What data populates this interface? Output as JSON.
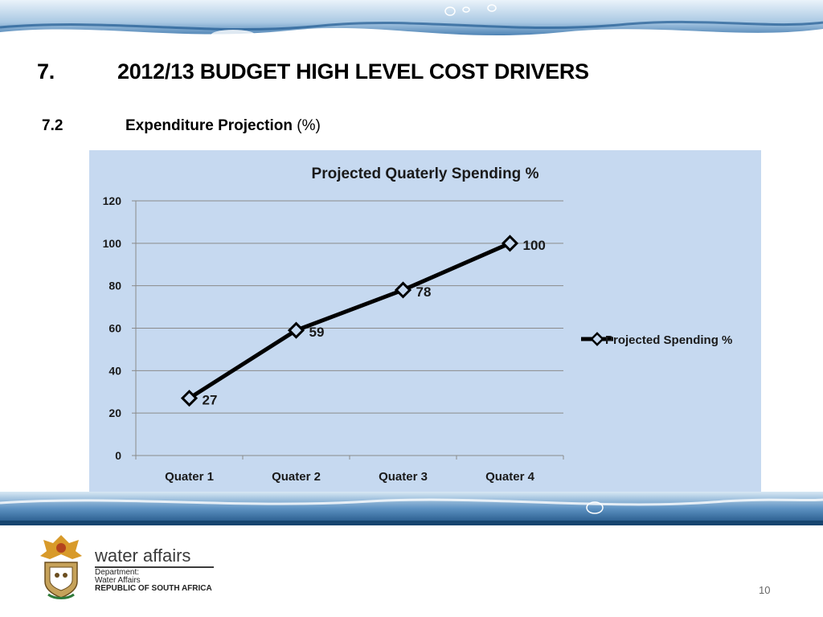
{
  "slide": {
    "section_number": "7.",
    "section_title": "2012/13 BUDGET HIGH LEVEL COST DRIVERS",
    "subsection_number": "7.2",
    "subsection_title": "Expenditure Projection",
    "subsection_unit": "(%)",
    "page_number": "10"
  },
  "footer": {
    "brand": "water affairs",
    "dept_line1": "Department:",
    "dept_line2": "Water Affairs",
    "dept_line3": "REPUBLIC OF SOUTH AFRICA"
  },
  "chart_data": {
    "type": "line",
    "title": "Projected Quaterly Spending %",
    "categories": [
      "Quater 1",
      "Quater 2",
      "Quater 3",
      "Quater 4"
    ],
    "series": [
      {
        "name": "Projected Spending %",
        "values": [
          27,
          59,
          78,
          100
        ]
      }
    ],
    "ylim": [
      0,
      120
    ],
    "yticks": [
      "0",
      "20",
      "40",
      "60",
      "80",
      "100",
      "120"
    ],
    "data_labels": [
      "27",
      "59",
      "78",
      "100"
    ],
    "grid": true,
    "legend_position": "right",
    "background_color": "#c6d9f0",
    "line_color": "#000000"
  }
}
